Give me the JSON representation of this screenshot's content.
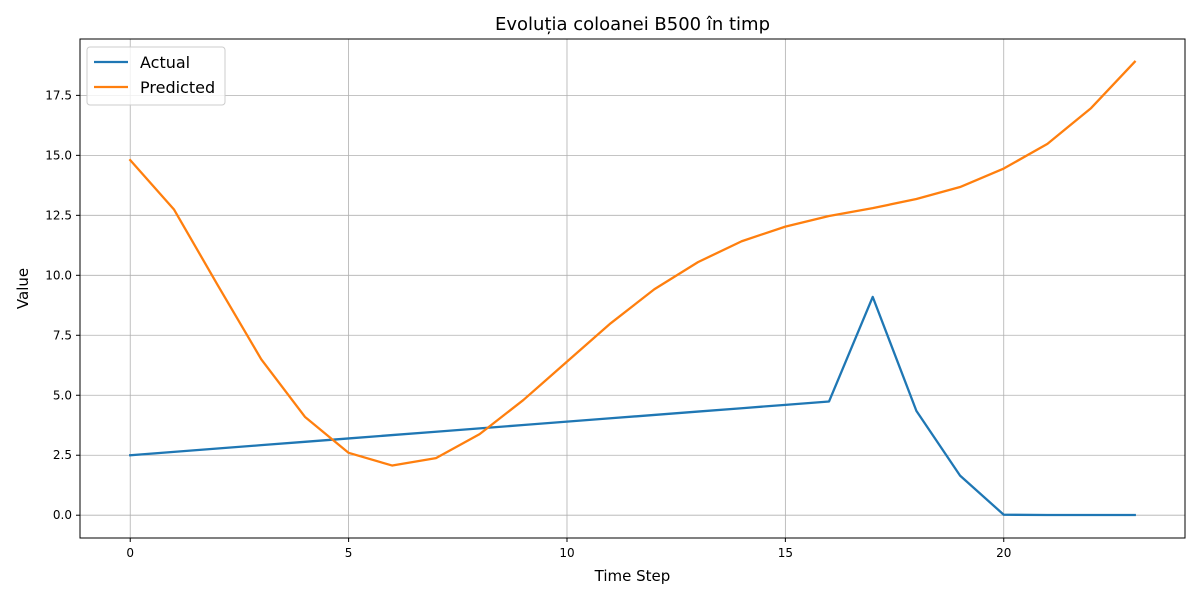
{
  "chart_data": {
    "type": "line",
    "title": "Evoluția coloanei B500 în timp",
    "xlabel": "Time Step",
    "ylabel": "Value",
    "xlim": [
      -1.15,
      24.15
    ],
    "ylim": [
      -0.95,
      19.85
    ],
    "xticks": [
      0,
      5,
      10,
      15,
      20
    ],
    "yticks": [
      0.0,
      2.5,
      5.0,
      7.5,
      10.0,
      12.5,
      15.0,
      17.5
    ],
    "xtick_labels": [
      "0",
      "5",
      "10",
      "15",
      "20"
    ],
    "ytick_labels": [
      "0.0",
      "2.5",
      "5.0",
      "7.5",
      "10.0",
      "12.5",
      "15.0",
      "17.5"
    ],
    "grid": true,
    "legend_position": "upper-left",
    "x": [
      0,
      1,
      2,
      3,
      4,
      5,
      6,
      7,
      8,
      9,
      10,
      11,
      12,
      13,
      14,
      15,
      16,
      17,
      18,
      19,
      20,
      21,
      22,
      23
    ],
    "series": [
      {
        "name": "Actual",
        "color": "#1f77b4",
        "values": [
          2.5,
          2.64,
          2.78,
          2.92,
          3.06,
          3.2,
          3.34,
          3.48,
          3.62,
          3.76,
          3.9,
          4.04,
          4.18,
          4.32,
          4.46,
          4.6,
          4.74,
          9.1,
          4.35,
          1.65,
          0.02,
          0.01,
          0.01,
          0.01
        ]
      },
      {
        "name": "Predicted",
        "color": "#ff7f0e",
        "values": [
          14.8,
          12.75,
          9.6,
          6.5,
          4.1,
          2.6,
          2.07,
          2.38,
          3.38,
          4.8,
          6.4,
          8.0,
          9.42,
          10.55,
          11.42,
          12.03,
          12.47,
          12.8,
          13.18,
          13.68,
          14.45,
          15.48,
          16.97,
          18.9
        ]
      }
    ]
  }
}
